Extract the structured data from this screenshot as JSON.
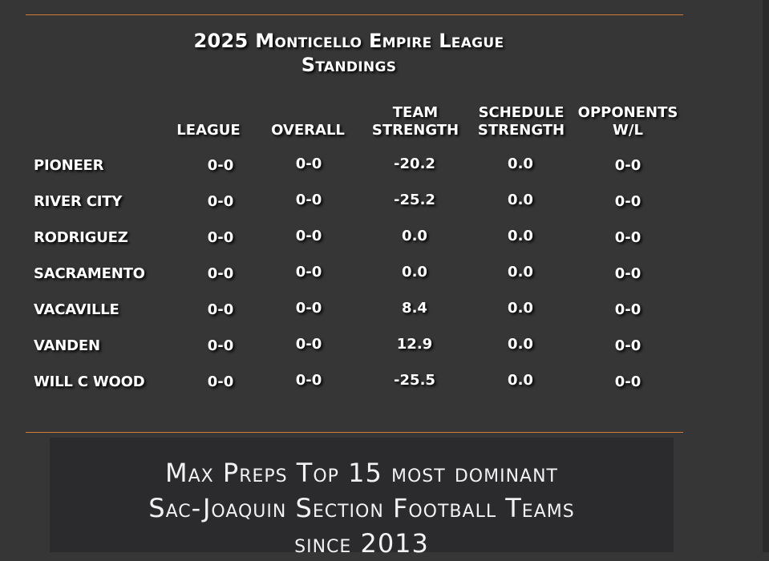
{
  "title": {
    "line1": "2025 Monticello Empire League",
    "line2": "Standings"
  },
  "columns": {
    "league": "LEAGUE",
    "overall": "OVERALL",
    "team_strength": "TEAM\nSTRENGTH",
    "schedule_strength": "SCHEDULE\nSTRENGTH",
    "opponents": "OPPONENTS\nW/L"
  },
  "teams": [
    {
      "name": "PIONEER",
      "league": "0-0",
      "overall": "0-0",
      "team_strength": "-20.2",
      "schedule_strength": "0.0",
      "opponents": "0-0"
    },
    {
      "name": "RIVER CITY",
      "league": "0-0",
      "overall": "0-0",
      "team_strength": "-25.2",
      "schedule_strength": "0.0",
      "opponents": "0-0"
    },
    {
      "name": "RODRIGUEZ",
      "league": "0-0",
      "overall": "0-0",
      "team_strength": "0.0",
      "schedule_strength": "0.0",
      "opponents": "0-0"
    },
    {
      "name": "SACRAMENTO",
      "league": "0-0",
      "overall": "0-0",
      "team_strength": "0.0",
      "schedule_strength": "0.0",
      "opponents": "0-0"
    },
    {
      "name": "VACAVILLE",
      "league": "0-0",
      "overall": "0-0",
      "team_strength": "8.4",
      "schedule_strength": "0.0",
      "opponents": "0-0"
    },
    {
      "name": "VANDEN",
      "league": "0-0",
      "overall": "0-0",
      "team_strength": "12.9",
      "schedule_strength": "0.0",
      "opponents": "0-0"
    },
    {
      "name": "WILL C WOOD",
      "league": "0-0",
      "overall": "0-0",
      "team_strength": "-25.5",
      "schedule_strength": "0.0",
      "opponents": "0-0"
    }
  ],
  "promo": {
    "line1": "Max Preps Top 15 most dominant",
    "line2": "Sac-Joaquin Section Football Teams",
    "line3": "since 2013"
  },
  "colors": {
    "background": "#363636",
    "rule": "#d07a36",
    "promo_bg": "#2b2b2e"
  }
}
